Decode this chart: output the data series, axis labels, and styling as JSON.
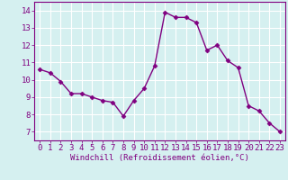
{
  "x": [
    0,
    1,
    2,
    3,
    4,
    5,
    6,
    7,
    8,
    9,
    10,
    11,
    12,
    13,
    14,
    15,
    16,
    17,
    18,
    19,
    20,
    21,
    22,
    23
  ],
  "y": [
    10.6,
    10.4,
    9.9,
    9.2,
    9.2,
    9.0,
    8.8,
    8.7,
    7.9,
    8.8,
    9.5,
    10.8,
    13.9,
    13.6,
    13.6,
    13.3,
    11.7,
    12.0,
    11.1,
    10.7,
    8.5,
    8.2,
    7.5,
    7.0
  ],
  "line_color": "#800080",
  "marker": "D",
  "markersize": 2.5,
  "linewidth": 1.0,
  "bg_color": "#d5f0f0",
  "grid_color": "#ffffff",
  "xlabel": "Windchill (Refroidissement éolien,°C)",
  "xlabel_fontsize": 6.5,
  "tick_fontsize": 6.5,
  "ylim": [
    6.5,
    14.5
  ],
  "yticks": [
    7,
    8,
    9,
    10,
    11,
    12,
    13,
    14
  ],
  "xlim": [
    -0.5,
    23.5
  ],
  "spine_color": "#800080"
}
